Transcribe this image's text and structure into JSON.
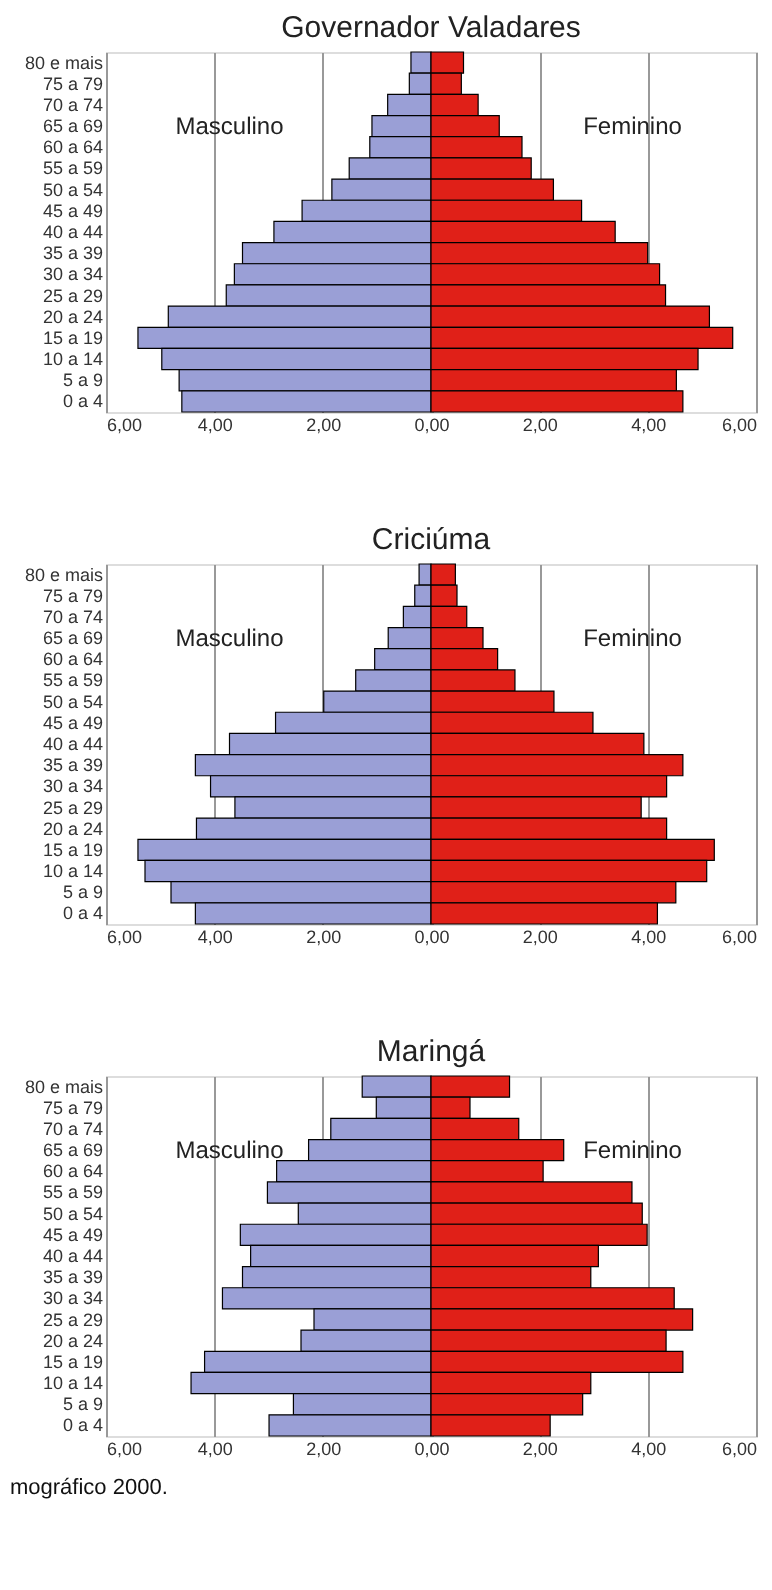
{
  "chart_data": [
    {
      "type": "bar",
      "orientation": "horizontal",
      "stacked": true,
      "title": "Governador Valadares",
      "legend": false,
      "grid": "x",
      "categories": [
        "80 e mais",
        "75 a 79",
        "70 a 74",
        "65 a 69",
        "60 a 64",
        "55 a 59",
        "50 a 54",
        "45 a 49",
        "40 a 44",
        "35 a 39",
        "30 a 34",
        "25 a 29",
        "20 a 24",
        "15 a 19",
        "10 a 14",
        "5 a 9",
        "0 a 4"
      ],
      "xlim": [
        -6,
        6
      ],
      "xticks": [
        {
          "value": -6,
          "label": "6,00"
        },
        {
          "value": -4,
          "label": "4,00"
        },
        {
          "value": -2,
          "label": "2,00"
        },
        {
          "value": 0,
          "label": "0,00"
        },
        {
          "value": 2,
          "label": "2,00"
        },
        {
          "value": 4,
          "label": "4,00"
        },
        {
          "value": 6,
          "label": "6,00"
        }
      ],
      "series": [
        {
          "name": "Masculino",
          "color": "#9a9fd6",
          "values": [
            -0.37,
            -0.4,
            -0.8,
            -1.09,
            -1.13,
            -1.51,
            -1.83,
            -2.38,
            -2.9,
            -3.48,
            -3.63,
            -3.78,
            -4.85,
            -5.41,
            -4.97,
            -4.65,
            -4.6
          ]
        },
        {
          "name": "Feminino",
          "color": "#e02018",
          "values": [
            0.6,
            0.56,
            0.87,
            1.26,
            1.68,
            1.85,
            2.26,
            2.78,
            3.4,
            4.0,
            4.22,
            4.33,
            5.14,
            5.57,
            4.93,
            4.53,
            4.65
          ]
        }
      ]
    },
    {
      "type": "bar",
      "orientation": "horizontal",
      "stacked": true,
      "title": "Criciúma",
      "legend": false,
      "grid": "x",
      "categories": [
        "80 e mais",
        "75 a 79",
        "70 a 74",
        "65 a 69",
        "60 a 64",
        "55 a 59",
        "50 a 54",
        "45 a 49",
        "40 a 44",
        "35 a 39",
        "30 a 34",
        "25 a 29",
        "20 a 24",
        "15 a 19",
        "10 a 14",
        "5 a 9",
        "0 a 4"
      ],
      "xlim": [
        -6,
        6
      ],
      "xticks": [
        {
          "value": -6,
          "label": "6,00"
        },
        {
          "value": -4,
          "label": "4,00"
        },
        {
          "value": -2,
          "label": "2,00"
        },
        {
          "value": 0,
          "label": "0,00"
        },
        {
          "value": 2,
          "label": "2,00"
        },
        {
          "value": 4,
          "label": "4,00"
        },
        {
          "value": 6,
          "label": "6,00"
        }
      ],
      "series": [
        {
          "name": "Masculino",
          "color": "#9a9fd6",
          "values": [
            -0.22,
            -0.3,
            -0.51,
            -0.79,
            -1.04,
            -1.39,
            -1.98,
            -2.87,
            -3.72,
            -4.35,
            -4.07,
            -3.62,
            -4.33,
            -5.41,
            -5.28,
            -4.8,
            -4.35
          ]
        },
        {
          "name": "Feminino",
          "color": "#e02018",
          "values": [
            0.45,
            0.48,
            0.66,
            0.96,
            1.23,
            1.55,
            2.27,
            2.99,
            3.93,
            4.65,
            4.35,
            3.88,
            4.35,
            5.23,
            5.09,
            4.52,
            4.18
          ]
        }
      ]
    },
    {
      "type": "bar",
      "orientation": "horizontal",
      "stacked": true,
      "title": "Maringá",
      "legend": false,
      "grid": "x",
      "categories": [
        "80 e mais",
        "75 a 79",
        "70 a 74",
        "65 a 69",
        "60 a 64",
        "55 a 59",
        "50 a 54",
        "45 a 49",
        "40 a 44",
        "35 a 39",
        "30 a 34",
        "25 a 29",
        "20 a 24",
        "15 a 19",
        "10 a 14",
        "5 a 9",
        "0 a 4"
      ],
      "xlim": [
        -6,
        6
      ],
      "xticks": [
        {
          "value": -6,
          "label": "6,00"
        },
        {
          "value": -4,
          "label": "4,00"
        },
        {
          "value": -2,
          "label": "2,00"
        },
        {
          "value": 0,
          "label": "0,00"
        },
        {
          "value": 2,
          "label": "2,00"
        },
        {
          "value": 4,
          "label": "4,00"
        },
        {
          "value": 6,
          "label": "6,00"
        }
      ],
      "series": [
        {
          "name": "Masculino",
          "color": "#9a9fd6",
          "values": [
            -1.27,
            -1.01,
            -1.85,
            -2.26,
            -2.85,
            -3.02,
            -2.45,
            -3.52,
            -3.33,
            -3.48,
            -3.85,
            -2.16,
            -2.4,
            -4.18,
            -4.43,
            -2.54,
            -2.99
          ]
        },
        {
          "name": "Feminino",
          "color": "#e02018",
          "values": [
            1.45,
            0.72,
            1.62,
            2.45,
            2.07,
            3.71,
            3.9,
            3.99,
            3.09,
            2.95,
            4.49,
            4.83,
            4.34,
            4.65,
            2.95,
            2.8,
            2.2
          ]
        }
      ],
      "annotations": [
        "mográfico 2000."
      ]
    }
  ]
}
